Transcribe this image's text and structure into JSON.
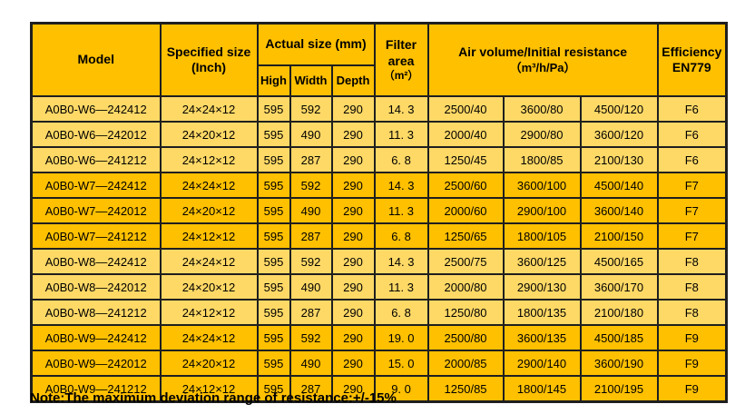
{
  "table": {
    "header": {
      "model": "Model",
      "specified_size_line1": "Specified size",
      "specified_size_line2": "(Inch)",
      "actual_size": "Actual size (mm)",
      "sub_high": "High",
      "sub_width": "Width",
      "sub_depth": "Depth",
      "filter_area_line1": "Filter",
      "filter_area_line2": "area",
      "filter_area_line3": "（m²）",
      "air_volume_line1": "Air volume/Initial resistance",
      "air_volume_line2": "（m³/h/Pa）",
      "efficiency_line1": "Efficiency",
      "efficiency_line2": "EN779"
    },
    "rows": [
      {
        "model": "A0B0-W6—242412",
        "spec": "24×24×12",
        "high": "595",
        "width": "592",
        "depth": "290",
        "area": "14. 3",
        "av1": "2500/40",
        "av2": "3600/80",
        "av3": "4500/120",
        "eff": "F6",
        "tone": "light"
      },
      {
        "model": "A0B0-W6—242012",
        "spec": "24×20×12",
        "high": "595",
        "width": "490",
        "depth": "290",
        "area": "11. 3",
        "av1": "2000/40",
        "av2": "2900/80",
        "av3": "3600/120",
        "eff": "F6",
        "tone": "light"
      },
      {
        "model": "A0B0-W6—241212",
        "spec": "24×12×12",
        "high": "595",
        "width": "287",
        "depth": "290",
        "area": "6. 8",
        "av1": "1250/45",
        "av2": "1800/85",
        "av3": "2100/130",
        "eff": "F6",
        "tone": "light"
      },
      {
        "model": "A0B0-W7—242412",
        "spec": "24×24×12",
        "high": "595",
        "width": "592",
        "depth": "290",
        "area": "14. 3",
        "av1": "2500/60",
        "av2": "3600/100",
        "av3": "4500/140",
        "eff": "F7",
        "tone": "dark"
      },
      {
        "model": "A0B0-W7—242012",
        "spec": "24×20×12",
        "high": "595",
        "width": "490",
        "depth": "290",
        "area": "11. 3",
        "av1": "2000/60",
        "av2": "2900/100",
        "av3": "3600/140",
        "eff": "F7",
        "tone": "dark"
      },
      {
        "model": "A0B0-W7—241212",
        "spec": "24×12×12",
        "high": "595",
        "width": "287",
        "depth": "290",
        "area": "6. 8",
        "av1": "1250/65",
        "av2": "1800/105",
        "av3": "2100/150",
        "eff": "F7",
        "tone": "dark"
      },
      {
        "model": "A0B0-W8—242412",
        "spec": "24×24×12",
        "high": "595",
        "width": "592",
        "depth": "290",
        "area": "14. 3",
        "av1": "2500/75",
        "av2": "3600/125",
        "av3": "4500/165",
        "eff": "F8",
        "tone": "light"
      },
      {
        "model": "A0B0-W8—242012",
        "spec": "24×20×12",
        "high": "595",
        "width": "490",
        "depth": "290",
        "area": "11. 3",
        "av1": "2000/80",
        "av2": "2900/130",
        "av3": "3600/170",
        "eff": "F8",
        "tone": "light"
      },
      {
        "model": "A0B0-W8—241212",
        "spec": "24×12×12",
        "high": "595",
        "width": "287",
        "depth": "290",
        "area": "6. 8",
        "av1": "1250/80",
        "av2": "1800/135",
        "av3": "2100/180",
        "eff": "F8",
        "tone": "light"
      },
      {
        "model": "A0B0-W9—242412",
        "spec": "24×24×12",
        "high": "595",
        "width": "592",
        "depth": "290",
        "area": "19. 0",
        "av1": "2500/80",
        "av2": "3600/135",
        "av3": "4500/185",
        "eff": "F9",
        "tone": "dark"
      },
      {
        "model": "A0B0-W9—242012",
        "spec": "24×20×12",
        "high": "595",
        "width": "490",
        "depth": "290",
        "area": "15. 0",
        "av1": "2000/85",
        "av2": "2900/140",
        "av3": "3600/190",
        "eff": "F9",
        "tone": "dark"
      },
      {
        "model": "A0B0-W9—241212",
        "spec": "24×12×12",
        "high": "595",
        "width": "287",
        "depth": "290",
        "area": "9. 0",
        "av1": "1250/85",
        "av2": "1800/145",
        "av3": "2100/195",
        "eff": "F9",
        "tone": "dark"
      }
    ]
  },
  "note": "Note:The maximum deviation range of resistance:+/-15%",
  "colors": {
    "group_dark": "#FFC000",
    "group_light": "#FFD966",
    "border": "#1f1f1f",
    "background": "#ffffff",
    "text": "#000000"
  }
}
